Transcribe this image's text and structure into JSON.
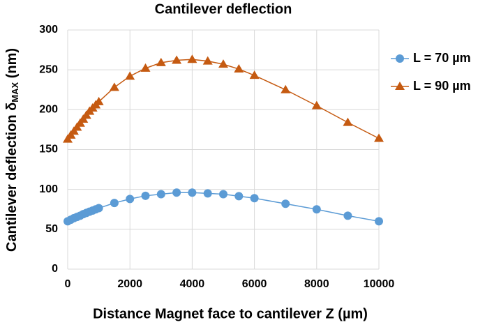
{
  "chart_data": {
    "type": "line",
    "title": "Cantilever deflection",
    "x_label": "Distance Magnet face to cantilever Z (µm)",
    "y_label": {
      "main": "Cantilever deflection δ",
      "sub": "MAX",
      "unit": " (nm)"
    },
    "x": [
      0,
      100,
      200,
      300,
      400,
      500,
      600,
      700,
      800,
      900,
      1000,
      1500,
      2000,
      2500,
      3000,
      3500,
      4000,
      4500,
      5000,
      5500,
      6000,
      7000,
      8000,
      9000,
      10000
    ],
    "series": [
      {
        "name": "L = 70 µm",
        "color": "#5b9bd5",
        "marker": "circle",
        "values": [
          60,
          62,
          64,
          65.5,
          67,
          69,
          70.5,
          72,
          73.5,
          75,
          76.5,
          83,
          88,
          92,
          94,
          96,
          96,
          95,
          94,
          91.5,
          89,
          82,
          75,
          67,
          60
        ]
      },
      {
        "name": "L = 90 µm",
        "color": "#c55a11",
        "marker": "triangle",
        "values": [
          163,
          168,
          173,
          178,
          183,
          188,
          193,
          198,
          202,
          206,
          210,
          228,
          242,
          252,
          259,
          262,
          263,
          261,
          257,
          251,
          243,
          225,
          205,
          184,
          164
        ]
      }
    ],
    "xlim": [
      0,
      10000
    ],
    "xticks": [
      0,
      2000,
      4000,
      6000,
      8000,
      10000
    ],
    "ylim": [
      0,
      300
    ],
    "yticks": [
      0,
      50,
      100,
      150,
      200,
      250,
      300
    ],
    "grid": true,
    "legend": "right"
  }
}
